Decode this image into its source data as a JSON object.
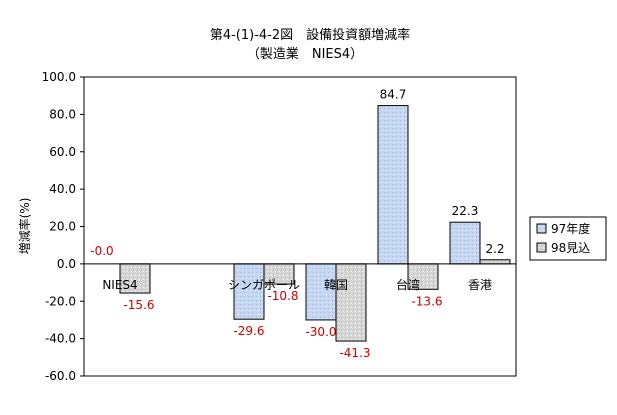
{
  "chart_data": {
    "type": "bar",
    "title": "第4-(1)-4-2図　設備投資額増減率",
    "subtitle": "（製造業　NIES4）",
    "xlabel": "",
    "ylabel": "増減率(%)",
    "ylim": [
      -60,
      100
    ],
    "ytick_step": 20,
    "yticks": [
      "100.0",
      "80.0",
      "60.0",
      "40.0",
      "20.0",
      "0.0",
      "-20.0",
      "-40.0",
      "-60.0"
    ],
    "grid": false,
    "legend_position": "right",
    "categories": [
      "NIES4",
      "",
      "シンガポール",
      "韓国",
      "台湾",
      "香港"
    ],
    "series": [
      {
        "name": "97年度",
        "values": [
          -0.0,
          null,
          -29.6,
          -30.0,
          84.7,
          22.3
        ],
        "labels": [
          "-0.0",
          "",
          "-29.6",
          "-30.0",
          "84.7",
          "22.3"
        ],
        "color": "#c8d8f0"
      },
      {
        "name": "98見込",
        "values": [
          -15.6,
          null,
          -10.8,
          -41.3,
          -13.6,
          2.2
        ],
        "labels": [
          "-15.6",
          "",
          "-10.8",
          "-41.3",
          "-13.6",
          "2.2"
        ],
        "color": "#d8d8d8"
      }
    ],
    "negative_label_color": "#cc0000",
    "positive_label_color": "#000000"
  }
}
